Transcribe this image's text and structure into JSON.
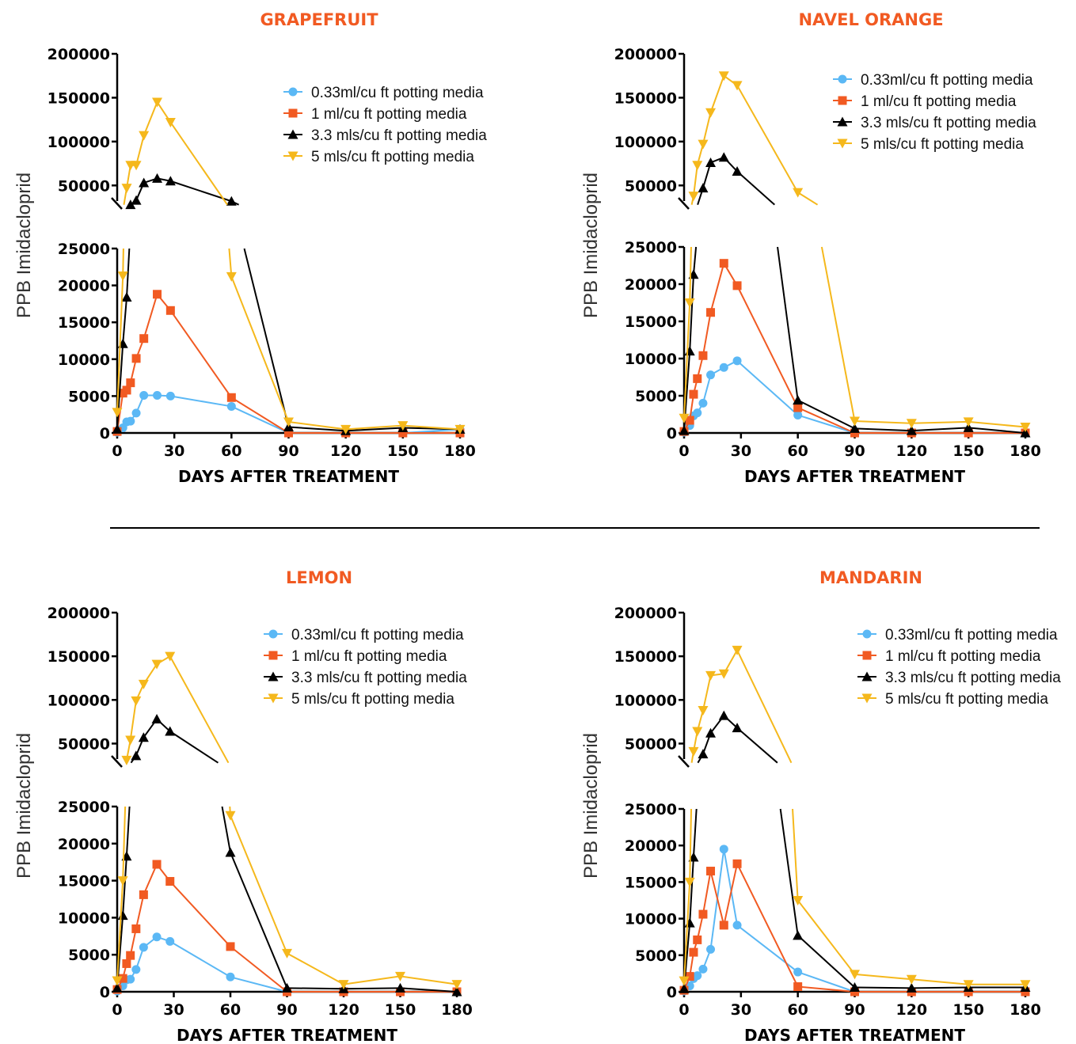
{
  "colors": {
    "title": "#f15a22",
    "s033": "#5bb8f5",
    "s1": "#f15a22",
    "s33": "#000000",
    "s5": "#f5b81c",
    "axis": "#000000",
    "divider": "#000000"
  },
  "legend_labels": [
    "0.33ml/cu ft potting media",
    "1 ml/cu ft potting media",
    "3.3 mls/cu ft potting media",
    "5 mls/cu ft potting media"
  ],
  "chart_data": [
    {
      "type": "line",
      "title": "GRAPEFRUIT",
      "xlabel": "DAYS AFTER TREATMENT",
      "ylabel": "PPB Imidacloprid",
      "xlim": [
        0,
        180
      ],
      "x_ticks": [
        "0",
        "30",
        "60",
        "90",
        "120",
        "150",
        "180"
      ],
      "y_lower_ticks": [
        "0",
        "5000",
        "10000",
        "15000",
        "20000",
        "25000"
      ],
      "y_upper_ticks": [
        "50000",
        "100000",
        "150000",
        "200000"
      ],
      "y_axis_break": [
        25000,
        25000
      ],
      "legend_position": "top-right",
      "series": [
        {
          "name": "0.33ml/cu ft potting media",
          "marker": "circle",
          "x": [
            0,
            3,
            5,
            7,
            10,
            14,
            21,
            28,
            60,
            90,
            120,
            150,
            180
          ],
          "y": [
            100,
            700,
            1500,
            1600,
            2700,
            5100,
            5100,
            5000,
            3600,
            0,
            0,
            0,
            500
          ]
        },
        {
          "name": "1 ml/cu ft potting media",
          "marker": "square",
          "x": [
            0,
            3,
            5,
            7,
            10,
            14,
            21,
            28,
            60,
            90,
            120,
            150,
            180
          ],
          "y": [
            200,
            5400,
            5800,
            6800,
            10100,
            12800,
            18800,
            16600,
            4800,
            0,
            0,
            0,
            0
          ]
        },
        {
          "name": "3.3 mls/cu ft potting media",
          "marker": "triangle-up",
          "x": [
            0,
            3,
            5,
            7,
            10,
            14,
            21,
            28,
            60,
            90,
            120,
            150,
            180
          ],
          "y": [
            500,
            12100,
            18400,
            28000,
            33000,
            53000,
            58000,
            55000,
            32000,
            800,
            300,
            700,
            500
          ]
        },
        {
          "name": "5 mls/cu ft potting media",
          "marker": "triangle-down",
          "x": [
            0,
            3,
            5,
            7,
            10,
            14,
            21,
            28,
            60,
            90,
            120,
            150,
            180
          ],
          "y": [
            2800,
            21300,
            47000,
            73000,
            73000,
            107000,
            145000,
            122000,
            21200,
            1500,
            500,
            1000,
            500
          ]
        }
      ]
    },
    {
      "type": "line",
      "title": "NAVEL ORANGE",
      "xlabel": "DAYS AFTER TREATMENT",
      "ylabel": "PPB Imidacloprid",
      "xlim": [
        0,
        180
      ],
      "x_ticks": [
        "0",
        "30",
        "60",
        "90",
        "120",
        "150",
        "180"
      ],
      "y_lower_ticks": [
        "0",
        "5000",
        "10000",
        "15000",
        "20000",
        "25000"
      ],
      "y_upper_ticks": [
        "50000",
        "100000",
        "150000",
        "200000"
      ],
      "y_axis_break": [
        25000,
        25000
      ],
      "legend_position": "top-right",
      "series": [
        {
          "name": "0.33ml/cu ft potting media",
          "marker": "circle",
          "x": [
            0,
            3,
            5,
            7,
            10,
            14,
            21,
            28,
            60,
            90,
            120,
            150,
            180
          ],
          "y": [
            100,
            1000,
            2300,
            2700,
            4000,
            7800,
            8800,
            9700,
            2400,
            0,
            0,
            0,
            0
          ]
        },
        {
          "name": "1 ml/cu ft potting media",
          "marker": "square",
          "x": [
            0,
            3,
            5,
            7,
            10,
            14,
            21,
            28,
            60,
            90,
            120,
            150,
            180
          ],
          "y": [
            200,
            1700,
            5200,
            7300,
            10400,
            16200,
            22800,
            19800,
            3400,
            0,
            0,
            0,
            0
          ]
        },
        {
          "name": "3.3 mls/cu ft potting media",
          "marker": "triangle-up",
          "x": [
            0,
            3,
            5,
            7,
            10,
            14,
            21,
            28,
            60,
            90,
            120,
            150,
            180
          ],
          "y": [
            300,
            11000,
            21300,
            27000,
            47000,
            76000,
            82000,
            66000,
            4400,
            600,
            300,
            700,
            0
          ]
        },
        {
          "name": "5 mls/cu ft potting media",
          "marker": "triangle-down",
          "x": [
            0,
            3,
            5,
            7,
            10,
            14,
            21,
            28,
            60,
            90,
            120,
            150,
            180
          ],
          "y": [
            2000,
            17500,
            38000,
            73000,
            97000,
            133000,
            175000,
            164000,
            42000,
            1600,
            1300,
            1500,
            800
          ]
        }
      ]
    },
    {
      "type": "line",
      "title": "LEMON",
      "xlabel": "DAYS AFTER TREATMENT",
      "ylabel": "PPB Imidacloprid",
      "xlim": [
        0,
        180
      ],
      "x_ticks": [
        "0",
        "30",
        "60",
        "90",
        "120",
        "150",
        "180"
      ],
      "y_lower_ticks": [
        "0",
        "5000",
        "10000",
        "15000",
        "20000",
        "25000"
      ],
      "y_upper_ticks": [
        "50000",
        "100000",
        "150000",
        "200000"
      ],
      "y_axis_break": [
        25000,
        25000
      ],
      "legend_position": "top-right",
      "series": [
        {
          "name": "0.33ml/cu ft potting media",
          "marker": "circle",
          "x": [
            0,
            3,
            5,
            7,
            10,
            14,
            21,
            28,
            60,
            90,
            120,
            150,
            180
          ],
          "y": [
            100,
            800,
            1600,
            1700,
            3000,
            6000,
            7400,
            6800,
            2000,
            0,
            0,
            0,
            0
          ]
        },
        {
          "name": "1 ml/cu ft potting media",
          "marker": "square",
          "x": [
            0,
            3,
            5,
            7,
            10,
            14,
            21,
            28,
            60,
            90,
            120,
            150,
            180
          ],
          "y": [
            300,
            1800,
            3800,
            4900,
            8500,
            13100,
            17200,
            14900,
            6100,
            0,
            0,
            0,
            0
          ]
        },
        {
          "name": "3.3 mls/cu ft potting media",
          "marker": "triangle-up",
          "x": [
            0,
            3,
            5,
            7,
            10,
            14,
            21,
            28,
            60,
            90,
            120,
            150,
            180
          ],
          "y": [
            500,
            10300,
            18300,
            27000,
            36000,
            57000,
            78000,
            64000,
            18800,
            500,
            400,
            500,
            0
          ]
        },
        {
          "name": "5 mls/cu ft potting media",
          "marker": "triangle-down",
          "x": [
            0,
            3,
            5,
            7,
            10,
            14,
            21,
            28,
            60,
            90,
            120,
            150,
            180
          ],
          "y": [
            1500,
            15000,
            31000,
            54000,
            99000,
            118000,
            141000,
            150000,
            23800,
            5200,
            1000,
            2100,
            1000
          ]
        }
      ]
    },
    {
      "type": "line",
      "title": "MANDARIN",
      "xlabel": "DAYS AFTER TREATMENT",
      "ylabel": "PPB Imidacloprid",
      "xlim": [
        0,
        180
      ],
      "x_ticks": [
        "0",
        "30",
        "60",
        "90",
        "120",
        "150",
        "180"
      ],
      "y_lower_ticks": [
        "0",
        "5000",
        "10000",
        "15000",
        "20000",
        "25000"
      ],
      "y_upper_ticks": [
        "50000",
        "100000",
        "150000",
        "200000"
      ],
      "y_axis_break": [
        25000,
        25000
      ],
      "legend_position": "top-right",
      "series": [
        {
          "name": "0.33ml/cu ft potting media",
          "marker": "circle",
          "x": [
            0,
            3,
            5,
            7,
            10,
            14,
            21,
            28,
            60,
            90,
            120,
            150,
            180
          ],
          "y": [
            100,
            800,
            1800,
            2200,
            3100,
            5800,
            19500,
            9100,
            2700,
            0,
            0,
            0,
            0
          ]
        },
        {
          "name": "1 ml/cu ft potting media",
          "marker": "square",
          "x": [
            0,
            3,
            5,
            7,
            10,
            14,
            21,
            28,
            60,
            90,
            120,
            150,
            180
          ],
          "y": [
            200,
            2100,
            5400,
            7100,
            10600,
            16500,
            9100,
            17500,
            700,
            0,
            0,
            0,
            0
          ]
        },
        {
          "name": "3.3 mls/cu ft potting media",
          "marker": "triangle-up",
          "x": [
            0,
            3,
            5,
            7,
            10,
            14,
            21,
            28,
            60,
            90,
            120,
            150,
            180
          ],
          "y": [
            400,
            9400,
            18400,
            27000,
            38000,
            62000,
            82000,
            68000,
            7700,
            600,
            500,
            600,
            600
          ]
        },
        {
          "name": "5 mls/cu ft potting media",
          "marker": "triangle-down",
          "x": [
            0,
            3,
            5,
            7,
            10,
            14,
            21,
            28,
            60,
            90,
            120,
            150,
            180
          ],
          "y": [
            1500,
            15000,
            41000,
            64000,
            88000,
            128000,
            130000,
            157000,
            12500,
            2400,
            1700,
            1000,
            1000
          ]
        }
      ]
    }
  ]
}
